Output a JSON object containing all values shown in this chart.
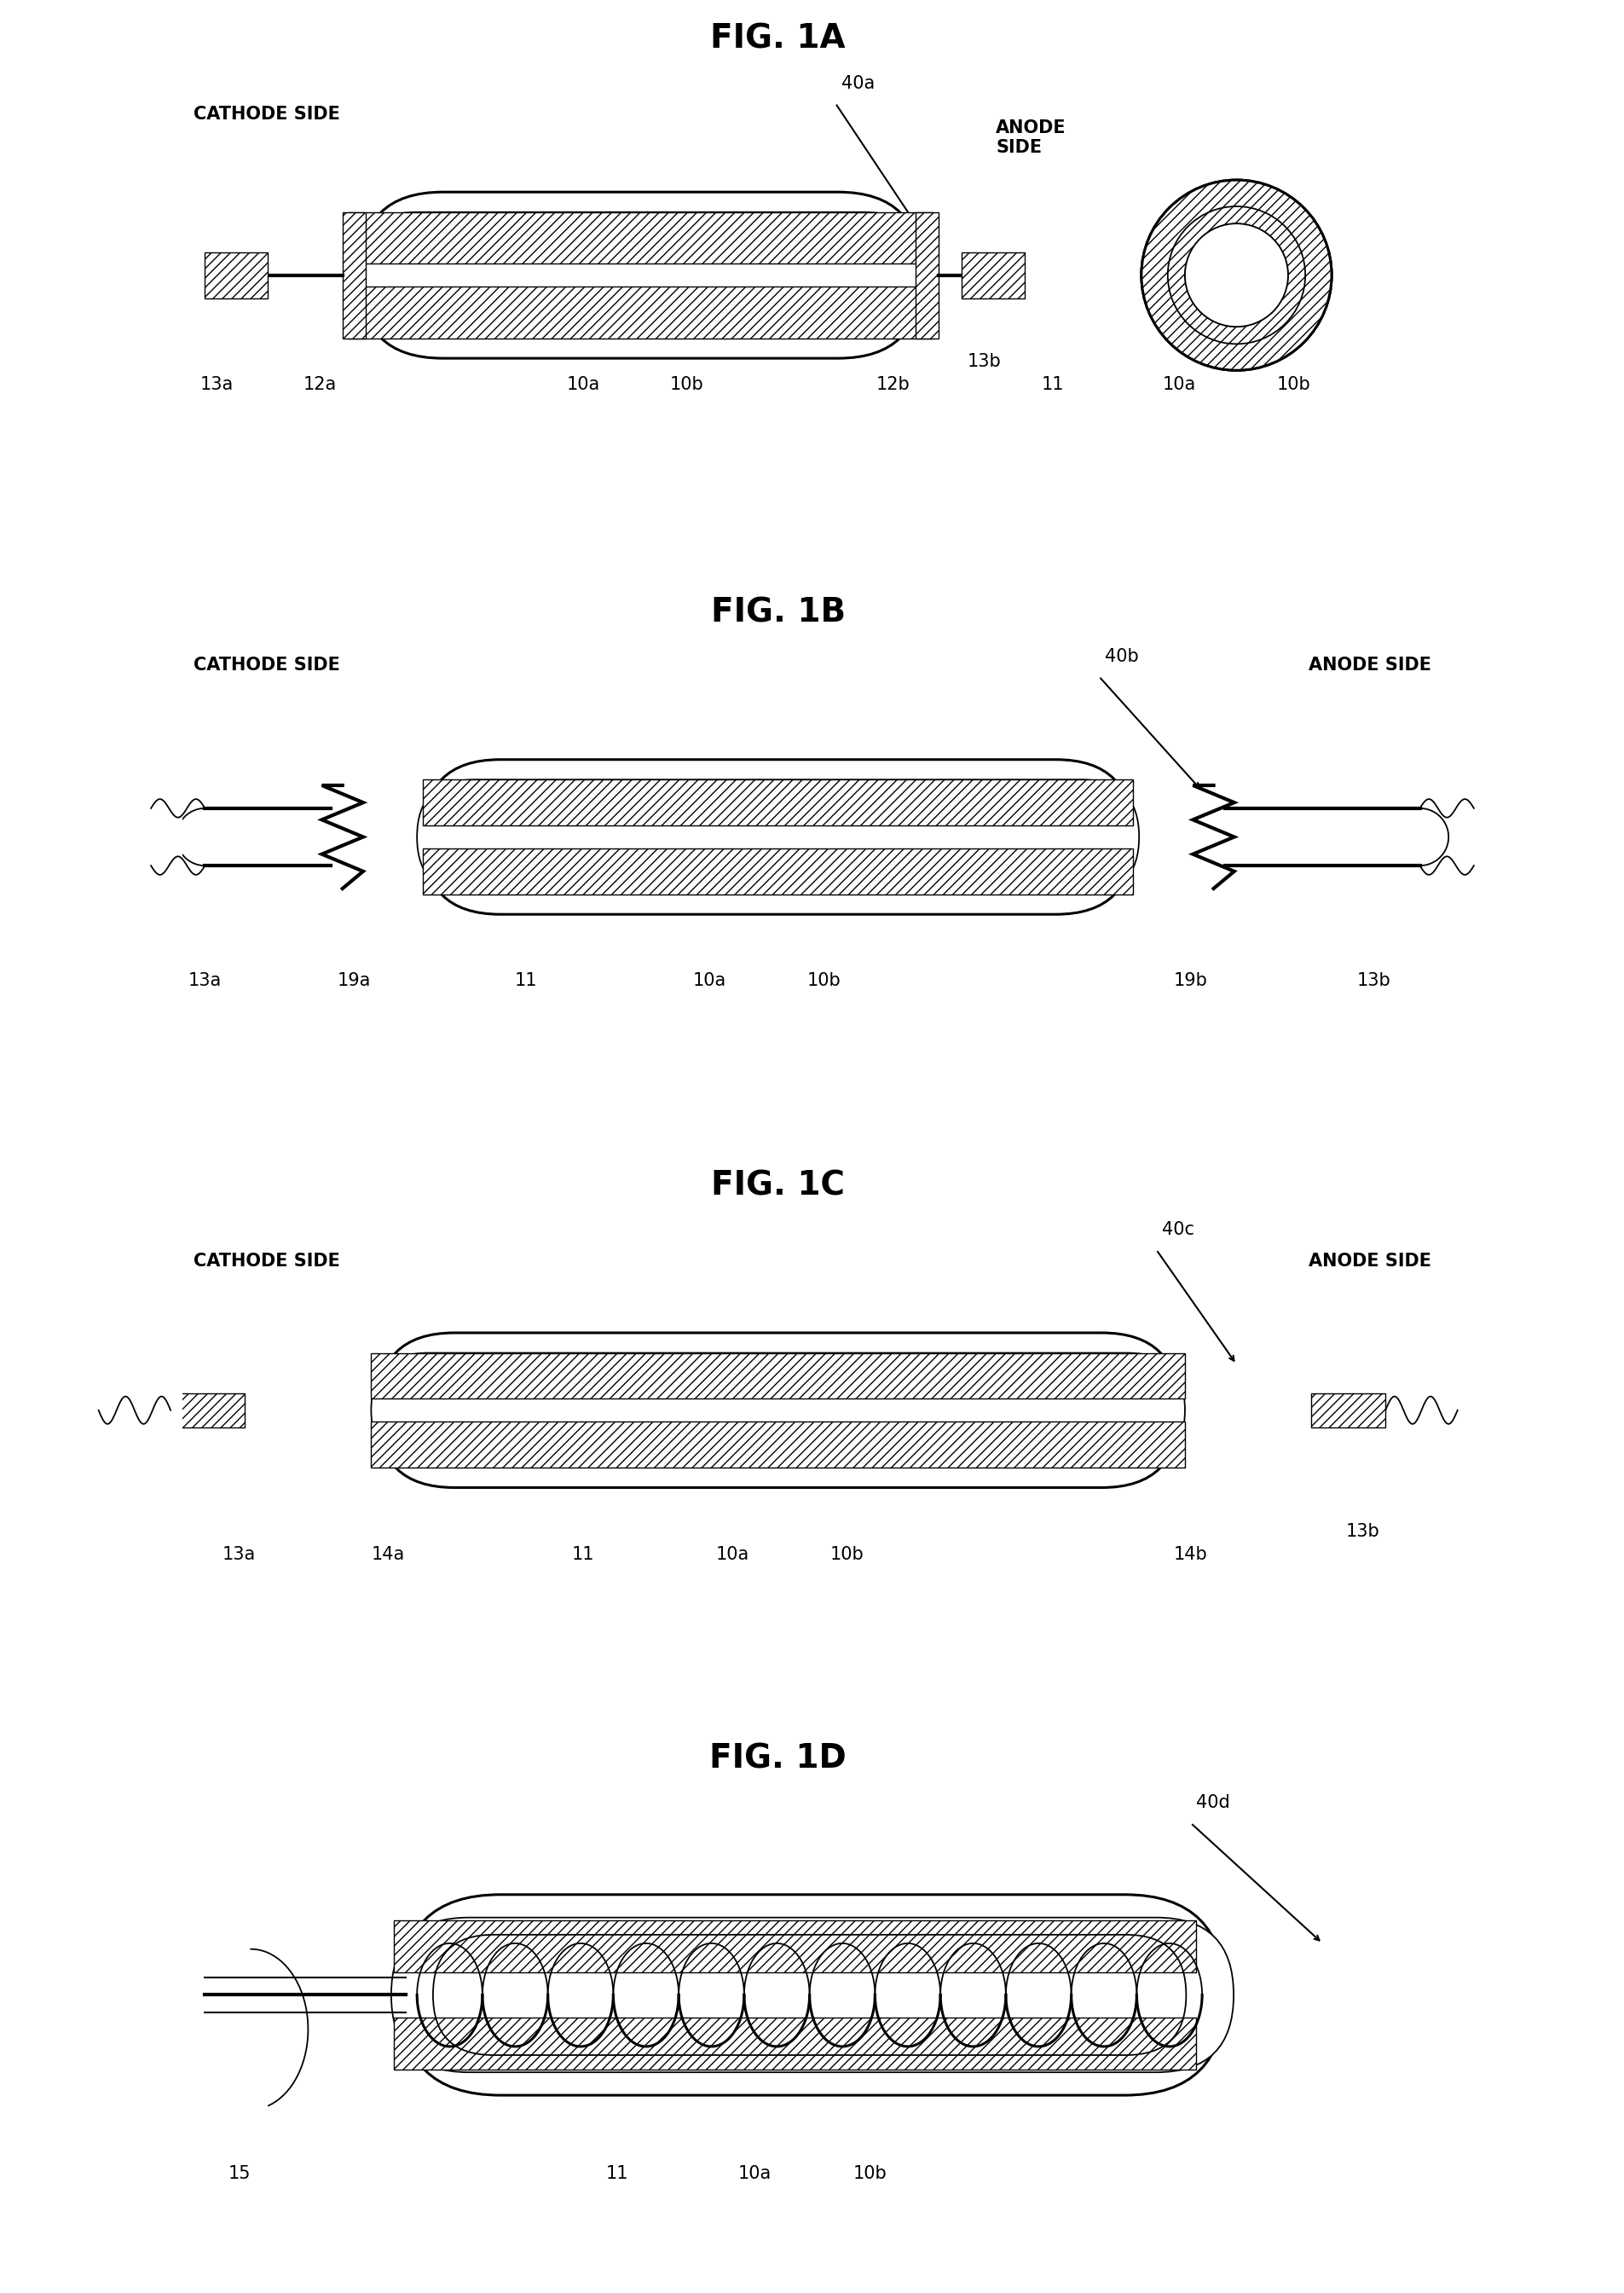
{
  "bg_color": "#ffffff",
  "line_color": "#000000",
  "fig_titles": [
    "FIG. 1A",
    "FIG. 1B",
    "FIG. 1C",
    "FIG. 1D"
  ],
  "title_fontsize": 28,
  "label_fontsize": 15,
  "side_label_fontsize": 15,
  "lw_main": 2.2,
  "lw_thin": 1.3,
  "lw_thick": 3.0
}
